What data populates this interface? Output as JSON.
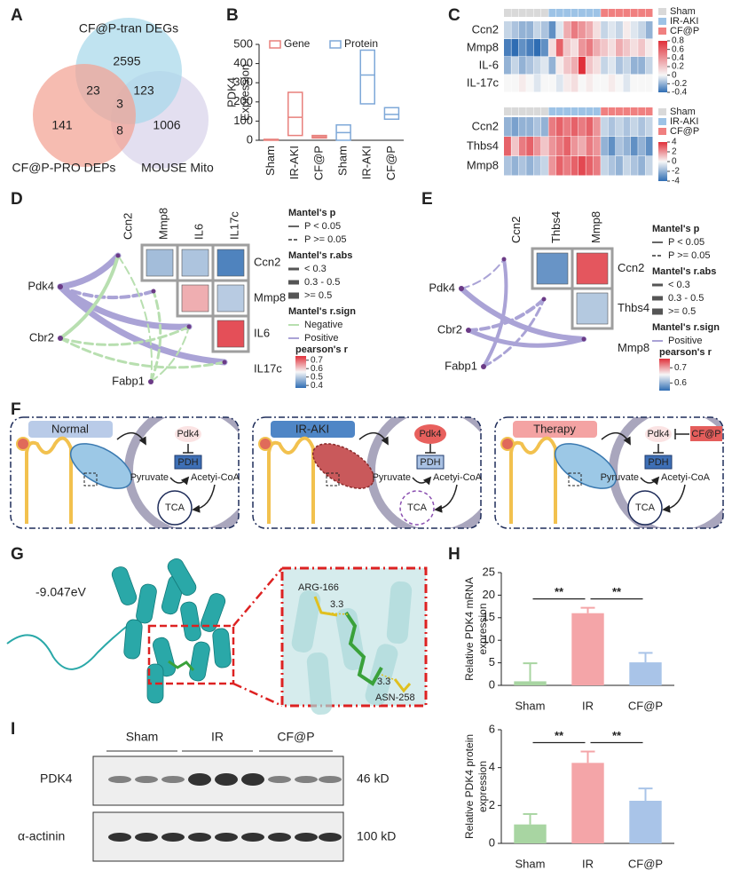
{
  "panel_labels": [
    "A",
    "B",
    "C",
    "D",
    "E",
    "F",
    "G",
    "H",
    "I"
  ],
  "venn": {
    "sets": [
      {
        "name": "CF@P-tran DEGs",
        "color": "#a8d8ea",
        "label_color": "#4cb3d4"
      },
      {
        "name": "CF@P-PRO DEPs",
        "color": "#f2a293",
        "label_color": "#e0503c"
      },
      {
        "name": "MOUSE Mito",
        "color": "#d8d3ea",
        "label_color": "#b0a6d4"
      }
    ],
    "regions": [
      2595,
      23,
      123,
      3,
      141,
      8,
      1006
    ]
  },
  "chart_data": [
    {
      "type": "box",
      "ylabel": [
        "PDK4",
        "Expression"
      ],
      "categories": [
        "Sham",
        "IR-AKI",
        "CF@P"
      ],
      "series": [
        {
          "name": "Gene",
          "color": "#e8807c",
          "low": [
            0,
            25,
            12
          ],
          "median": [
            2,
            120,
            18
          ],
          "high": [
            5,
            250,
            25
          ]
        },
        {
          "name": "Protein",
          "color": "#7ea8d8",
          "low": [
            0,
            190,
            110
          ],
          "median": [
            40,
            340,
            135
          ],
          "high": [
            80,
            470,
            170
          ]
        }
      ],
      "ylim": [
        0,
        500
      ],
      "yticks": [
        0,
        100,
        200,
        300,
        400,
        500
      ]
    },
    {
      "type": "heatmap",
      "rows": [
        "Ccn2",
        "Mmp8",
        "IL-6",
        "IL-17c"
      ],
      "groups": [
        {
          "name": "Sham",
          "color": "#d9d9d9",
          "count": 6
        },
        {
          "name": "IR-AKI",
          "color": "#9dc3e6",
          "count": 7
        },
        {
          "name": "CF@P",
          "color": "#f08080",
          "count": 7
        }
      ],
      "values": [
        [
          -0.1,
          -0.15,
          -0.2,
          -0.2,
          -0.1,
          -0.15,
          -0.3,
          -0.05,
          0.3,
          0.5,
          0.4,
          0.3,
          0.1,
          -0.1,
          -0.05,
          -0.1,
          0.05,
          -0.05,
          -0.1,
          -0.2
        ],
        [
          -0.35,
          -0.4,
          -0.3,
          -0.35,
          -0.4,
          -0.3,
          0.1,
          0.6,
          0.2,
          0.1,
          0.4,
          0.5,
          0.3,
          0.2,
          0.1,
          0.3,
          0.2,
          0.1,
          0.2,
          0.05
        ],
        [
          -0.2,
          -0.1,
          -0.2,
          -0.15,
          -0.1,
          -0.05,
          -0.2,
          0.05,
          0.2,
          0.3,
          0.8,
          0.2,
          0.1,
          -0.1,
          -0.05,
          -0.15,
          -0.1,
          -0.2,
          -0.2,
          -0.1
        ],
        [
          0,
          0,
          0.05,
          0,
          -0.05,
          0,
          0,
          -0.05,
          0.05,
          0.1,
          0,
          0.05,
          0,
          0,
          0.05,
          0,
          -0.05,
          0,
          0,
          0
        ]
      ],
      "zlim": [
        -0.4,
        0.8
      ],
      "zticks": [
        0.8,
        0.6,
        0.4,
        0.2,
        0,
        -0.2,
        -0.4
      ]
    },
    {
      "type": "heatmap",
      "rows": [
        "Ccn2",
        "Thbs4",
        "Mmp8"
      ],
      "groups": [
        {
          "name": "Sham",
          "color": "#d9d9d9",
          "count": 6
        },
        {
          "name": "IR-AKI",
          "color": "#9dc3e6",
          "count": 7
        },
        {
          "name": "CF@P",
          "color": "#f08080",
          "count": 7
        }
      ],
      "values": [
        [
          -2,
          -2.5,
          -2,
          -2,
          -1.5,
          -2,
          2.5,
          3,
          2.5,
          3,
          2.5,
          3,
          2,
          -1,
          -1.5,
          -1,
          -1.5,
          -1,
          -1.5,
          -1
        ],
        [
          3,
          1,
          2.5,
          3,
          2,
          1,
          2,
          2.5,
          3,
          2,
          1.5,
          2.5,
          2,
          -2,
          -3,
          -1.5,
          -2,
          -3,
          -2,
          -3
        ],
        [
          -1.5,
          -2,
          -1.5,
          -2,
          -1.5,
          -1,
          2,
          3,
          2.5,
          3,
          3.5,
          3,
          2.5,
          -1,
          -1.5,
          -2,
          -1,
          -1.5,
          -2,
          -1
        ]
      ],
      "zlim": [
        -4,
        4
      ],
      "zticks": [
        4,
        2,
        0,
        -2,
        -4
      ]
    },
    {
      "type": "correlation",
      "variables": [
        "Ccn2",
        "Mmp8",
        "IL6",
        "IL17c"
      ],
      "values": [
        [
          null,
          0.48,
          0.49,
          0.4
        ],
        [
          null,
          null,
          0.63,
          0.5
        ],
        [
          null,
          null,
          null,
          0.72
        ],
        [
          null,
          null,
          null,
          null
        ]
      ],
      "nodes": [
        "Pdk4",
        "Cbr2",
        "Fabp1"
      ],
      "legend": {
        "p_title": "Mantel's p",
        "p_levels": [
          "P < 0.05",
          "P >= 0.05"
        ],
        "r_title": "Mantel's r.abs",
        "r_levels": [
          "< 0.3",
          "0.3 - 0.5",
          ">= 0.5"
        ],
        "sign_title": "Mantel's r.sign",
        "sign_levels": [
          "Negative",
          "Positive"
        ],
        "sign_colors": [
          "#b8dfb0",
          "#aaa3d6"
        ],
        "color_title": "pearson's r"
      },
      "zlim": [
        0.37,
        0.75
      ],
      "zticks": [
        0.7,
        0.6,
        0.5,
        0.4
      ]
    },
    {
      "type": "correlation",
      "variables": [
        "Ccn2",
        "Thbs4",
        "Mmp8"
      ],
      "values": [
        [
          null,
          0.58,
          0.74
        ],
        [
          null,
          null,
          0.62
        ],
        [
          null,
          null,
          null
        ]
      ],
      "nodes": [
        "Pdk4",
        "Cbr2",
        "Fabp1"
      ],
      "legend": {
        "p_title": "Mantel's p",
        "p_levels": [
          "P < 0.05",
          "P >= 0.05"
        ],
        "r_title": "Mantel's r.abs",
        "r_levels": [
          "< 0.3",
          "0.3 - 0.5",
          ">= 0.5"
        ],
        "sign_title": "Mantel's r.sign",
        "sign_levels": [
          "Positive"
        ],
        "sign_colors": [
          "#aaa3d6"
        ],
        "color_title": "pearson's r"
      },
      "zlim": [
        0.55,
        0.76
      ],
      "zticks": [
        0.7,
        0.6
      ]
    },
    {
      "type": "bar",
      "ylabel": [
        "Relative PDK4 mRNA",
        "expression"
      ],
      "categories": [
        "Sham",
        "IR",
        "CF@P"
      ],
      "values": [
        0.9,
        16,
        5.1
      ],
      "errors": [
        4.0,
        1.2,
        2.1
      ],
      "colors": [
        "#a8d5a2",
        "#f4a5a8",
        "#a9c4e8"
      ],
      "significance": [
        {
          "between": [
            0,
            1
          ],
          "label": "**"
        },
        {
          "between": [
            1,
            2
          ],
          "label": "**"
        }
      ],
      "ylim": [
        0,
        25
      ],
      "yticks": [
        0,
        5,
        10,
        15,
        20,
        25
      ]
    },
    {
      "type": "bar",
      "ylabel": [
        "Relative PDK4 protein",
        "expression"
      ],
      "categories": [
        "Sham",
        "IR",
        "CF@P"
      ],
      "values": [
        1.0,
        4.25,
        2.25
      ],
      "errors": [
        0.55,
        0.6,
        0.65
      ],
      "colors": [
        "#a8d5a2",
        "#f4a5a8",
        "#a9c4e8"
      ],
      "significance": [
        {
          "between": [
            0,
            1
          ],
          "label": "**"
        },
        {
          "between": [
            1,
            2
          ],
          "label": "**"
        }
      ],
      "ylim": [
        0,
        6
      ],
      "yticks": [
        0,
        2,
        4,
        6
      ]
    }
  ],
  "diagram": {
    "panels": [
      {
        "title": "Normal",
        "color": "#b9cbe8",
        "injured": false,
        "treated": false
      },
      {
        "title": "IR-AKI",
        "color": "#4f86c6",
        "injured": true,
        "treated": false
      },
      {
        "title": "Therapy",
        "color": "#f4a3a3",
        "injured": false,
        "treated": true
      }
    ],
    "labels": {
      "pdk4": "Pdk4",
      "pdh": "PDH",
      "pyruvate": "Pyruvate",
      "acetyl": "Acetyi-CoA",
      "tca": "TCA",
      "drug": "CF@P"
    }
  },
  "docking": {
    "energy": "-9.047eV",
    "residues": [
      "ARG-166",
      "ASN-258"
    ],
    "distances": [
      3.3,
      3.3
    ]
  },
  "blot": {
    "groups": [
      "Sham",
      "IR",
      "CF@P"
    ],
    "bands": [
      {
        "name": "PDK4",
        "size": "46 kD"
      },
      {
        "name": "α-actinin",
        "size": "100 kD"
      }
    ]
  }
}
